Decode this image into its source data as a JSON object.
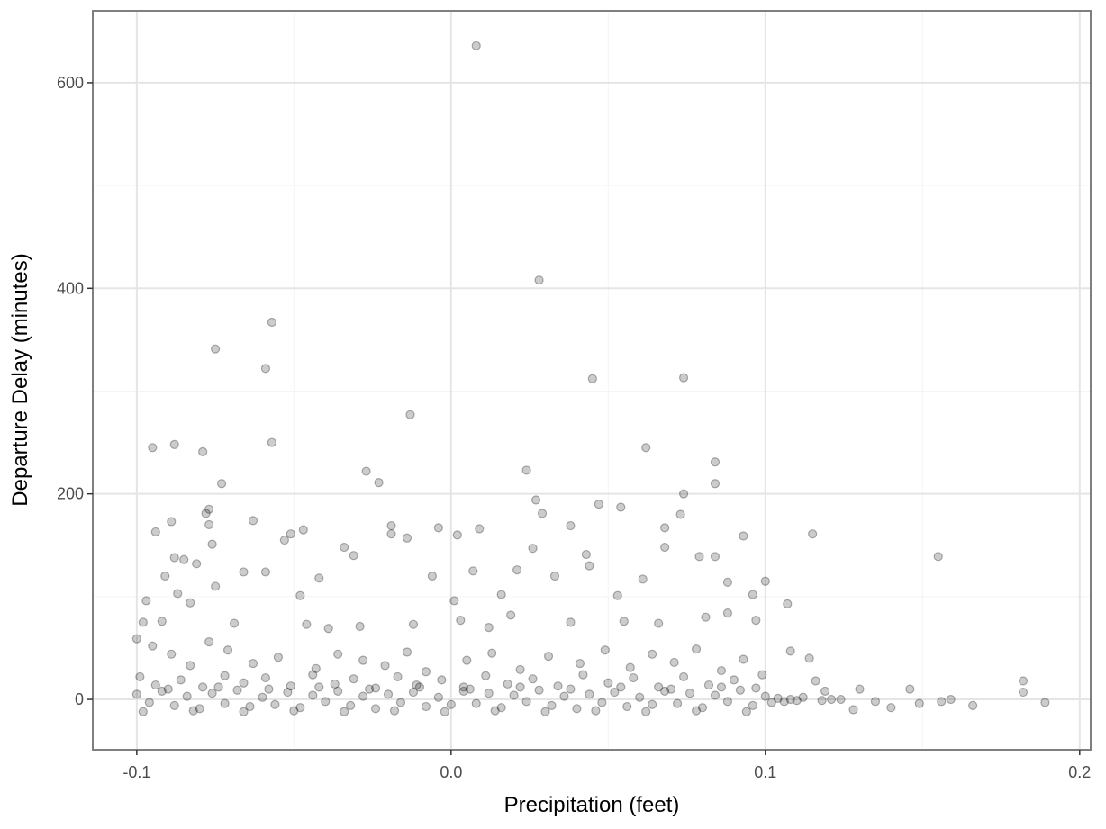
{
  "chart_data": {
    "type": "scatter",
    "title": "",
    "xlabel": "Precipitation (feet)",
    "ylabel": "Departure Delay (minutes)",
    "xlim": [
      -0.114,
      0.2035
    ],
    "ylim": [
      -49,
      670
    ],
    "x_ticks": [
      -0.1,
      0.0,
      0.1,
      0.2
    ],
    "x_tick_labels": [
      "-0.1",
      "0.0",
      "0.1",
      "0.2"
    ],
    "y_ticks": [
      0,
      200,
      400,
      600
    ],
    "y_tick_labels": [
      "0",
      "200",
      "400",
      "600"
    ],
    "grid": true,
    "legend": "none",
    "point_color": "#000000",
    "point_alpha": 0.2,
    "points": [
      [
        0.008,
        636
      ],
      [
        0.028,
        408
      ],
      [
        -0.057,
        367
      ],
      [
        -0.075,
        341
      ],
      [
        -0.059,
        322
      ],
      [
        0.045,
        312
      ],
      [
        0.074,
        313
      ],
      [
        -0.013,
        277
      ],
      [
        -0.057,
        250
      ],
      [
        -0.095,
        245
      ],
      [
        -0.088,
        248
      ],
      [
        -0.079,
        241
      ],
      [
        0.062,
        245
      ],
      [
        -0.027,
        222
      ],
      [
        -0.023,
        211
      ],
      [
        -0.073,
        210
      ],
      [
        0.024,
        223
      ],
      [
        0.084,
        231
      ],
      [
        0.084,
        210
      ],
      [
        0.074,
        200
      ],
      [
        0.027,
        194
      ],
      [
        0.029,
        181
      ],
      [
        0.047,
        190
      ],
      [
        0.054,
        187
      ],
      [
        0.073,
        180
      ],
      [
        -0.077,
        185
      ],
      [
        -0.078,
        181
      ],
      [
        -0.089,
        173
      ],
      [
        -0.063,
        174
      ],
      [
        -0.047,
        165
      ],
      [
        -0.004,
        167
      ],
      [
        -0.019,
        169
      ],
      [
        0.009,
        166
      ],
      [
        0.038,
        169
      ],
      [
        0.068,
        167
      ],
      [
        -0.094,
        163
      ],
      [
        -0.077,
        170
      ],
      [
        -0.051,
        161
      ],
      [
        -0.019,
        161
      ],
      [
        0.115,
        161
      ],
      [
        0.155,
        139
      ],
      [
        0.093,
        159
      ],
      [
        -0.076,
        151
      ],
      [
        -0.053,
        155
      ],
      [
        -0.014,
        157
      ],
      [
        0.002,
        160
      ],
      [
        0.043,
        141
      ],
      [
        0.068,
        148
      ],
      [
        0.084,
        139
      ],
      [
        0.021,
        126
      ],
      [
        -0.085,
        136
      ],
      [
        -0.081,
        132
      ],
      [
        -0.088,
        138
      ],
      [
        -0.034,
        148
      ],
      [
        -0.031,
        140
      ],
      [
        -0.006,
        120
      ],
      [
        0.007,
        125
      ],
      [
        0.026,
        147
      ],
      [
        0.044,
        130
      ],
      [
        0.079,
        139
      ],
      [
        -0.091,
        120
      ],
      [
        -0.075,
        110
      ],
      [
        -0.066,
        124
      ],
      [
        -0.059,
        124
      ],
      [
        -0.042,
        118
      ],
      [
        0.033,
        120
      ],
      [
        0.061,
        117
      ],
      [
        0.088,
        114
      ],
      [
        0.1,
        115
      ],
      [
        -0.097,
        96
      ],
      [
        -0.087,
        103
      ],
      [
        -0.083,
        94
      ],
      [
        -0.048,
        101
      ],
      [
        0.001,
        96
      ],
      [
        0.016,
        102
      ],
      [
        0.053,
        101
      ],
      [
        0.096,
        102
      ],
      [
        0.107,
        93
      ],
      [
        -0.098,
        75
      ],
      [
        -0.092,
        76
      ],
      [
        -0.077,
        56
      ],
      [
        -0.069,
        74
      ],
      [
        -0.046,
        73
      ],
      [
        -0.039,
        69
      ],
      [
        -0.029,
        71
      ],
      [
        -0.012,
        73
      ],
      [
        0.003,
        77
      ],
      [
        0.012,
        70
      ],
      [
        0.019,
        82
      ],
      [
        0.038,
        75
      ],
      [
        0.055,
        76
      ],
      [
        0.066,
        74
      ],
      [
        0.081,
        80
      ],
      [
        0.088,
        84
      ],
      [
        0.097,
        77
      ],
      [
        0.108,
        47
      ],
      [
        0.114,
        40
      ],
      [
        0.116,
        18
      ],
      [
        0.119,
        8
      ],
      [
        0.124,
        0
      ],
      [
        0.128,
        -10
      ],
      [
        0.13,
        10
      ],
      [
        0.135,
        -2
      ],
      [
        0.14,
        -8
      ],
      [
        0.146,
        10
      ],
      [
        0.149,
        -4
      ],
      [
        0.156,
        -2
      ],
      [
        0.159,
        0
      ],
      [
        0.166,
        -6
      ],
      [
        0.182,
        18
      ],
      [
        0.182,
        7
      ],
      [
        0.189,
        -3
      ],
      [
        -0.1,
        59
      ],
      [
        -0.095,
        52
      ],
      [
        -0.089,
        44
      ],
      [
        -0.083,
        33
      ],
      [
        -0.071,
        48
      ],
      [
        -0.063,
        35
      ],
      [
        -0.055,
        41
      ],
      [
        -0.043,
        30
      ],
      [
        -0.036,
        44
      ],
      [
        -0.028,
        38
      ],
      [
        -0.021,
        33
      ],
      [
        -0.014,
        46
      ],
      [
        -0.008,
        27
      ],
      [
        0.005,
        38
      ],
      [
        0.013,
        45
      ],
      [
        0.022,
        29
      ],
      [
        0.031,
        42
      ],
      [
        0.041,
        35
      ],
      [
        0.049,
        48
      ],
      [
        0.057,
        31
      ],
      [
        0.064,
        44
      ],
      [
        0.071,
        36
      ],
      [
        0.078,
        49
      ],
      [
        0.086,
        28
      ],
      [
        0.093,
        39
      ],
      [
        0.099,
        24
      ],
      [
        -0.099,
        22
      ],
      [
        -0.094,
        14
      ],
      [
        -0.086,
        19
      ],
      [
        -0.079,
        12
      ],
      [
        -0.072,
        23
      ],
      [
        -0.066,
        16
      ],
      [
        -0.059,
        21
      ],
      [
        -0.051,
        13
      ],
      [
        -0.044,
        24
      ],
      [
        -0.037,
        15
      ],
      [
        -0.031,
        20
      ],
      [
        -0.024,
        11
      ],
      [
        -0.017,
        22
      ],
      [
        -0.011,
        14
      ],
      [
        -0.003,
        19
      ],
      [
        0.004,
        12
      ],
      [
        0.011,
        23
      ],
      [
        0.018,
        15
      ],
      [
        0.026,
        20
      ],
      [
        0.034,
        13
      ],
      [
        0.042,
        24
      ],
      [
        0.05,
        16
      ],
      [
        0.058,
        21
      ],
      [
        0.066,
        12
      ],
      [
        0.074,
        22
      ],
      [
        0.082,
        14
      ],
      [
        0.09,
        19
      ],
      [
        0.097,
        11
      ],
      [
        -0.1,
        5
      ],
      [
        -0.096,
        -3
      ],
      [
        -0.092,
        8
      ],
      [
        -0.088,
        -6
      ],
      [
        -0.084,
        3
      ],
      [
        -0.08,
        -9
      ],
      [
        -0.076,
        6
      ],
      [
        -0.072,
        -4
      ],
      [
        -0.068,
        9
      ],
      [
        -0.064,
        -7
      ],
      [
        -0.06,
        2
      ],
      [
        -0.056,
        -5
      ],
      [
        -0.052,
        7
      ],
      [
        -0.048,
        -8
      ],
      [
        -0.044,
        4
      ],
      [
        -0.04,
        -2
      ],
      [
        -0.036,
        8
      ],
      [
        -0.032,
        -6
      ],
      [
        -0.028,
        3
      ],
      [
        -0.024,
        -9
      ],
      [
        -0.02,
        5
      ],
      [
        -0.016,
        -3
      ],
      [
        -0.012,
        7
      ],
      [
        -0.008,
        -7
      ],
      [
        -0.004,
        2
      ],
      [
        0.0,
        -5
      ],
      [
        0.004,
        8
      ],
      [
        0.008,
        -4
      ],
      [
        0.012,
        6
      ],
      [
        0.016,
        -8
      ],
      [
        0.02,
        4
      ],
      [
        0.024,
        -2
      ],
      [
        0.028,
        9
      ],
      [
        0.032,
        -6
      ],
      [
        0.036,
        3
      ],
      [
        0.04,
        -9
      ],
      [
        0.044,
        5
      ],
      [
        0.048,
        -3
      ],
      [
        0.052,
        7
      ],
      [
        0.056,
        -7
      ],
      [
        0.06,
        2
      ],
      [
        0.064,
        -5
      ],
      [
        0.068,
        8
      ],
      [
        0.072,
        -4
      ],
      [
        0.076,
        6
      ],
      [
        0.08,
        -8
      ],
      [
        0.084,
        4
      ],
      [
        0.088,
        -2
      ],
      [
        0.092,
        9
      ],
      [
        0.096,
        -6
      ],
      [
        0.1,
        3
      ],
      [
        0.102,
        -3
      ],
      [
        0.104,
        1
      ],
      [
        0.106,
        -2
      ],
      [
        0.108,
        0
      ],
      [
        0.11,
        -1
      ],
      [
        0.112,
        2
      ],
      [
        0.118,
        -1
      ],
      [
        0.121,
        0
      ],
      [
        -0.098,
        -12
      ],
      [
        -0.09,
        10
      ],
      [
        -0.082,
        -11
      ],
      [
        -0.074,
        12
      ],
      [
        -0.066,
        -12
      ],
      [
        -0.058,
        10
      ],
      [
        -0.05,
        -11
      ],
      [
        -0.042,
        12
      ],
      [
        -0.034,
        -12
      ],
      [
        -0.026,
        10
      ],
      [
        -0.018,
        -11
      ],
      [
        -0.01,
        12
      ],
      [
        -0.002,
        -12
      ],
      [
        0.006,
        10
      ],
      [
        0.014,
        -11
      ],
      [
        0.022,
        12
      ],
      [
        0.03,
        -12
      ],
      [
        0.038,
        10
      ],
      [
        0.046,
        -11
      ],
      [
        0.054,
        12
      ],
      [
        0.062,
        -12
      ],
      [
        0.07,
        10
      ],
      [
        0.078,
        -11
      ],
      [
        0.086,
        12
      ],
      [
        0.094,
        -12
      ]
    ]
  }
}
